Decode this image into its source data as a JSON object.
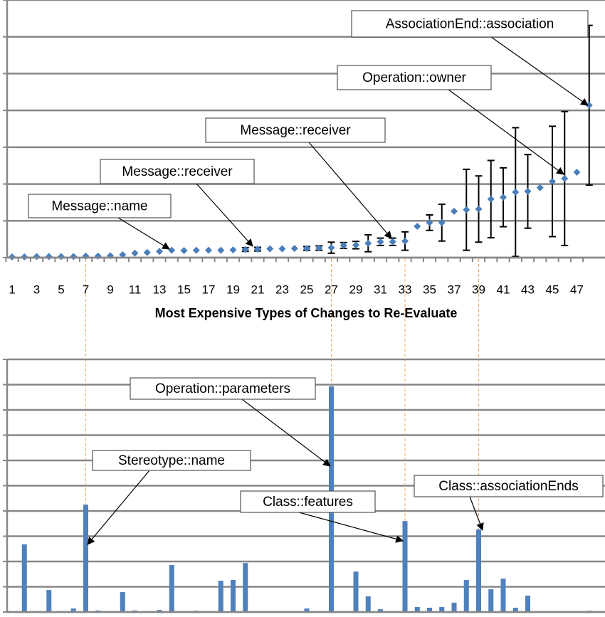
{
  "chart_data": [
    {
      "type": "scatter",
      "x_label": "Most Expensive Types of Changes to Re-Evaluate",
      "categories": [
        1,
        null,
        3,
        null,
        5,
        null,
        7,
        null,
        9,
        null,
        11,
        null,
        13,
        null,
        15,
        null,
        17,
        null,
        19,
        null,
        21,
        null,
        23,
        null,
        25,
        null,
        27,
        null,
        29,
        null,
        31,
        null,
        33,
        null,
        35,
        null,
        37,
        null,
        39,
        null,
        41,
        null,
        43,
        null,
        45,
        null,
        47,
        null
      ],
      "values": [
        0.02,
        0.02,
        0.03,
        0.03,
        0.03,
        0.03,
        0.04,
        0.04,
        0.05,
        0.08,
        0.12,
        0.14,
        0.17,
        0.2,
        0.19,
        0.2,
        0.2,
        0.2,
        0.21,
        0.22,
        0.23,
        0.24,
        0.24,
        0.25,
        0.25,
        0.26,
        0.27,
        0.33,
        0.34,
        0.39,
        0.43,
        0.43,
        0.45,
        0.85,
        0.95,
        0.95,
        1.26,
        1.3,
        1.32,
        1.59,
        1.64,
        1.78,
        1.8,
        1.9,
        2.07,
        2.15,
        2.32,
        4.14
      ],
      "errors": [
        null,
        null,
        null,
        null,
        null,
        null,
        null,
        null,
        null,
        null,
        null,
        null,
        null,
        null,
        null,
        null,
        null,
        null,
        null,
        0.05,
        0.05,
        null,
        null,
        null,
        0.05,
        0.06,
        0.15,
        0.08,
        0.1,
        0.23,
        0.1,
        0.1,
        0.25,
        null,
        0.21,
        0.5,
        null,
        1.1,
        0.9,
        1.05,
        0.8,
        1.75,
        1.0,
        null,
        1.5,
        1.82,
        null,
        2.17
      ],
      "color": "#4a7ebb",
      "ylim": [
        0,
        7
      ],
      "yticks": [
        0,
        1,
        2,
        3,
        4,
        5,
        6,
        7
      ],
      "grid": true,
      "annotations": [
        "AssociationEnd::association",
        "Operation::owner",
        "Message::receiver",
        "Message::receiver",
        "Message::name"
      ]
    },
    {
      "type": "bar",
      "categories": [
        1,
        null,
        3,
        null,
        5,
        null,
        7,
        null,
        9,
        null,
        11,
        null,
        13,
        null,
        15,
        null,
        17,
        null,
        19,
        null,
        21,
        null,
        23,
        null,
        25,
        null,
        27,
        null,
        29,
        null,
        31,
        null,
        33,
        null,
        35,
        null,
        37,
        null,
        39,
        null,
        41,
        null,
        43,
        null,
        45,
        null,
        47,
        null
      ],
      "values": [
        0,
        2.68,
        0,
        0.87,
        0,
        0.14,
        4.25,
        0.06,
        0,
        0.79,
        0.06,
        0,
        0.08,
        1.86,
        0,
        0.05,
        0,
        1.24,
        1.27,
        1.94,
        0,
        0,
        0,
        0,
        0.14,
        0,
        8.93,
        0,
        1.6,
        0.62,
        0.11,
        0,
        3.6,
        0.2,
        0.17,
        0.2,
        0.37,
        1.27,
        3.27,
        0.9,
        1.32,
        0.17,
        0.65,
        0,
        0,
        0,
        0,
        0.05
      ],
      "color": "#4f81bd",
      "ylim": [
        0,
        10
      ],
      "yticks": [
        0,
        1,
        2,
        3,
        4,
        5,
        6,
        7,
        8,
        9,
        10
      ],
      "grid": true,
      "annotations": [
        "Stereotype::name",
        "Operation::parameters",
        "Class::features",
        "Class::associationEnds"
      ]
    }
  ]
}
